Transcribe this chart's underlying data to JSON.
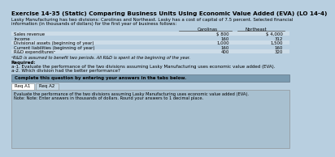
{
  "title": "Exercise 14-35 (Static) Comparing Business Units Using Economic Value Added (EVA) (LO 14-4)",
  "body_line1": "Lasky Manufacturing has two divisions: Carolinas and Northeast. Lasky has a cost of capital of 7.5 percent. Selected financial",
  "body_line2": "information (in thousands of dollars) for the first year of business follows:",
  "table_rows": [
    [
      "Sales revenue",
      "$ 800",
      "$ 4,000"
    ],
    [
      "Income",
      "160",
      "312"
    ],
    [
      "Divisional assets (beginning of year)",
      "1,000",
      "1,500"
    ],
    [
      "Current liabilities (beginning of year)",
      "160",
      "160"
    ],
    [
      "R&D expendituresᵃ",
      "400",
      "320"
    ]
  ],
  "col_headers": [
    "",
    "Carolinas",
    "Northeast"
  ],
  "footnote": "ᵃR&D is assumed to benefit two periods. All R&D is spent at the beginning of the year.",
  "req_line0": "Required:",
  "req_line1": "a-1. Evaluate the performance of the two divisions assuming Lasky Manufacturing uses economic value added (EVA).",
  "req_line2": "a-2. Which division had the better performance?",
  "complete_box_text": "Complete this question by entering your answers in the tabs below.",
  "tab1": "Req A1",
  "tab2": "Req A2",
  "bottom_line1": "Evaluate the performance of the two divisions assuming Lasky Manufacturing uses economic value added (EVA).",
  "bottom_line2": "Note: Note: Enter answers in thousands of dollars. Round your answers to 1 decimal place.",
  "bg_color": "#b8cfe0",
  "title_fontsize": 5.2,
  "body_fontsize": 4.0,
  "table_fontsize": 3.9,
  "footnote_fontsize": 3.7,
  "complete_box_bg": "#7a9ab0",
  "tab1_bg": "#ffffff",
  "tab2_bg": "#c5d8e5",
  "bottom_box_bg": "#a8c0d0",
  "table_header_line_color": "#444444",
  "complete_box_text_color": "#000000",
  "tab_border_color": "#888888",
  "bottom_box_border": "#888888"
}
